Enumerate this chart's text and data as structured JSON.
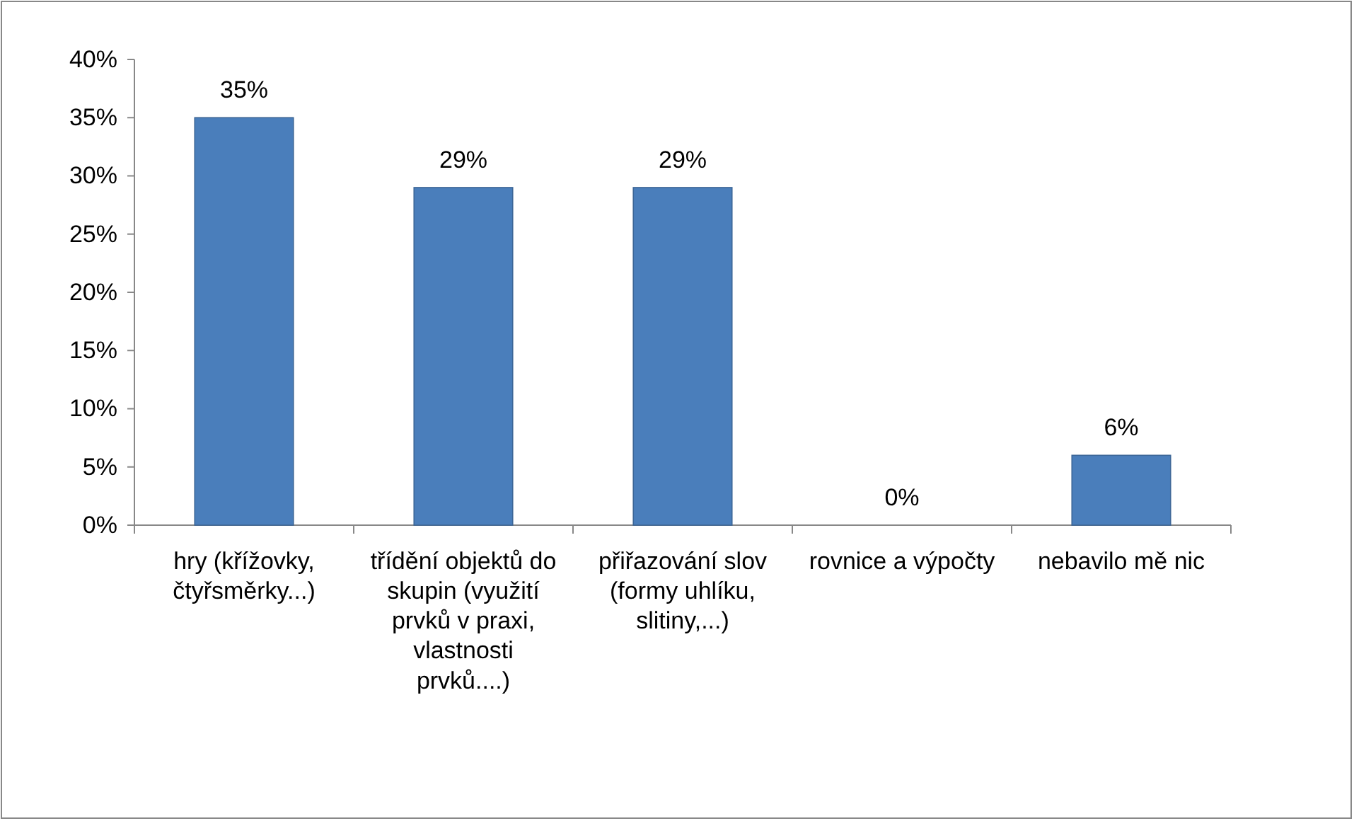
{
  "chart_data": {
    "type": "bar",
    "categories": [
      "hry (křížovky, čtyřsměrky...)",
      "třídění objektů do skupin (využití prvků v praxi, vlastnosti prvků....)",
      "přiřazování slov (formy uhlíku, slitiny,...)",
      "rovnice a výpočty",
      "nebavilo mě nic"
    ],
    "values": [
      35,
      29,
      29,
      0,
      6
    ],
    "value_labels": [
      "35%",
      "29%",
      "29%",
      "0%",
      "6%"
    ],
    "color": "#4a7ebb",
    "ylim": [
      0,
      40
    ],
    "yticks": [
      {
        "value": 0,
        "label": "0%"
      },
      {
        "value": 5,
        "label": "5%"
      },
      {
        "value": 10,
        "label": "10%"
      },
      {
        "value": 15,
        "label": "15%"
      },
      {
        "value": 20,
        "label": "20%"
      },
      {
        "value": 25,
        "label": "25%"
      },
      {
        "value": 30,
        "label": "30%"
      },
      {
        "value": 35,
        "label": "35%"
      },
      {
        "value": 40,
        "label": "40%"
      }
    ],
    "grid": false
  }
}
